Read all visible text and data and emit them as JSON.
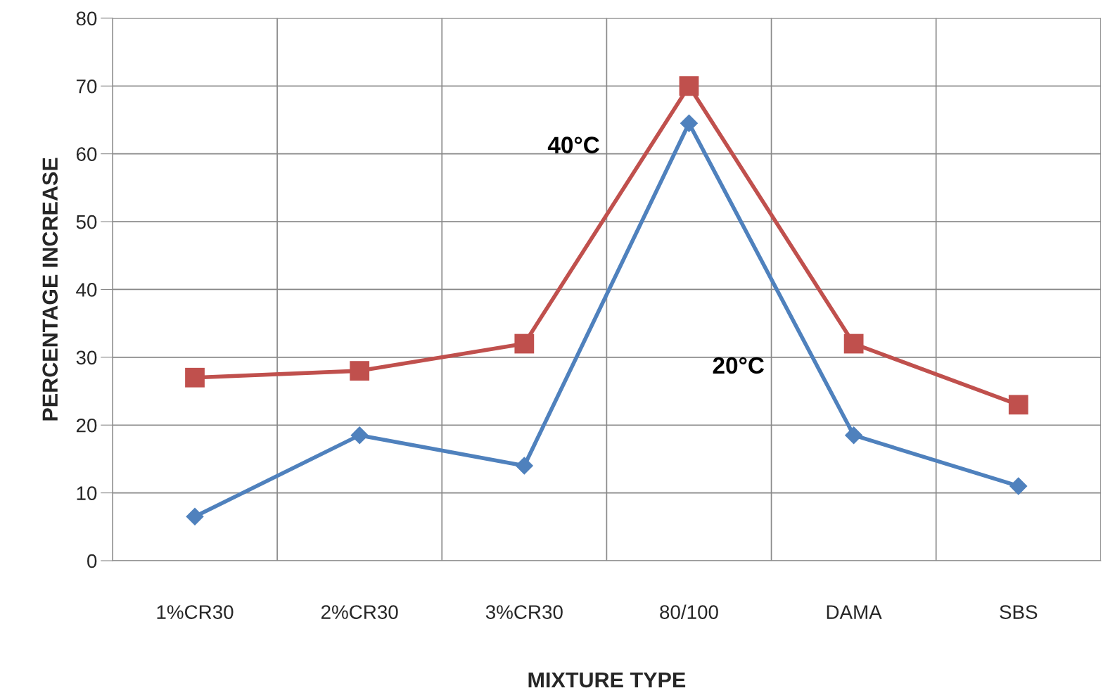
{
  "chart_data": {
    "type": "line",
    "xlabel": "MIXTURE TYPE",
    "ylabel": "PERCENTAGE INCREASE",
    "categories": [
      "1%CR30",
      "2%CR30",
      "3%CR30",
      "80/100",
      "DAMA",
      "SBS"
    ],
    "series": [
      {
        "name": "40°C",
        "color": "#c0504d",
        "marker": "square",
        "values": [
          27,
          28,
          32,
          70,
          32,
          23
        ]
      },
      {
        "name": "20°C",
        "color": "#4f81bd",
        "marker": "diamond",
        "values": [
          6.5,
          18.5,
          14,
          64.5,
          18.5,
          11
        ]
      }
    ],
    "ylim": [
      0,
      80
    ],
    "yticks": [
      0,
      10,
      20,
      30,
      40,
      50,
      60,
      70,
      80
    ],
    "grid": true
  }
}
